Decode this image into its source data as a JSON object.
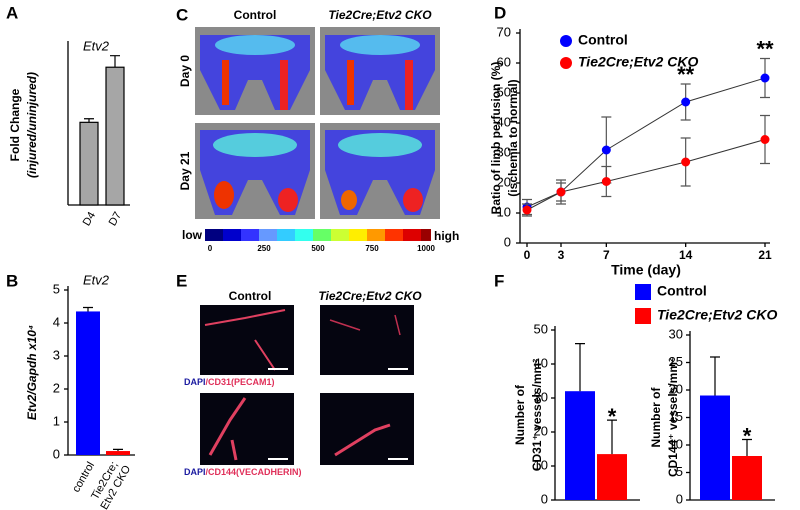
{
  "panel_letters": [
    "A",
    "B",
    "C",
    "D",
    "E",
    "F"
  ],
  "imaging": {
    "columns": [
      "Control",
      "Tie2Cre;Etv2 CKO"
    ],
    "rows": [
      "Day 0",
      "Day 21"
    ],
    "colorbar": {
      "low": "low",
      "high": "high",
      "ticks": [
        "0",
        "250",
        "500",
        "750",
        "1000"
      ]
    }
  },
  "microscopy": {
    "columns": [
      "Control",
      "Tie2Cre;Etv2 CKO"
    ],
    "captions": [
      [
        "DAPI",
        "/CD31(PECAM1)"
      ],
      [
        "DAPI",
        "/CD144(VECADHERIN)"
      ]
    ]
  },
  "chart_data": [
    {
      "type": "bar",
      "title": "Etv2",
      "ylabel": [
        "Fold Change",
        "(injured/uninjured)"
      ],
      "categories": [
        "D4",
        "D7"
      ],
      "values": [
        9.3,
        15.5
      ],
      "errors": [
        0.4,
        1.3
      ],
      "color": "#a6a6a6",
      "ylim": [
        0,
        18
      ]
    },
    {
      "type": "bar",
      "title": "Etv2",
      "ylabel": [
        "Etv2/Gapdh x10⁴"
      ],
      "categories": [
        "control",
        "Tie2Cre; Etv2 CKO"
      ],
      "values": [
        4.35,
        0.12
      ],
      "errors": [
        0.12,
        0.05
      ],
      "colors": [
        "#0000ff",
        "#ff0000"
      ],
      "ylim": [
        0,
        5
      ],
      "yticks": [
        0,
        1,
        2,
        3,
        4,
        5
      ]
    },
    {
      "type": "line",
      "xlabel": "Time (day)",
      "ylabel": [
        "Ratio of limb perfusion (%)",
        "(ischemia to normal)"
      ],
      "x": [
        0,
        3,
        7,
        14,
        21
      ],
      "xlim": [
        0,
        21
      ],
      "xticks": [
        0,
        3,
        7,
        14,
        21
      ],
      "ylim": [
        0,
        70
      ],
      "yticks": [
        0,
        10,
        20,
        30,
        40,
        50,
        60,
        70
      ],
      "series": [
        {
          "name": "Control",
          "color": "#0000ff",
          "values": [
            12,
            17,
            31,
            47,
            55
          ],
          "errors": [
            2.5,
            3,
            11,
            6,
            6.5
          ]
        },
        {
          "name": "Tie2Cre;Etv2 CKO",
          "color": "#ff0000",
          "values": [
            11,
            17,
            20.5,
            27,
            34.5
          ],
          "errors": [
            2,
            4,
            5,
            8,
            8
          ]
        }
      ],
      "annotations": [
        {
          "text": "**",
          "x": 14
        },
        {
          "text": "**",
          "x": 21
        }
      ]
    },
    {
      "type": "bar",
      "ylabel": [
        "Number of",
        "CD31⁺ vessels/mm²"
      ],
      "categories": [
        null
      ],
      "series": [
        {
          "name": "Control",
          "color": "#0000ff",
          "values": [
            32
          ],
          "errors": [
            14
          ]
        },
        {
          "name": "Tie2Cre;Etv2 CKO",
          "color": "#ff0000",
          "values": [
            13.5
          ],
          "errors": [
            10
          ]
        }
      ],
      "ylim": [
        0,
        50
      ],
      "yticks": [
        0,
        10,
        20,
        30,
        40,
        50
      ],
      "annotations": [
        {
          "text": "*",
          "series": 1
        }
      ]
    },
    {
      "type": "bar",
      "ylabel": [
        "Number of",
        "CD144⁺ vessels/mm²"
      ],
      "categories": [
        null
      ],
      "series": [
        {
          "color": "#0000ff",
          "values": [
            19
          ],
          "errors": [
            7
          ]
        },
        {
          "color": "#ff0000",
          "values": [
            8
          ],
          "errors": [
            3
          ]
        }
      ],
      "ylim": [
        0,
        30
      ],
      "yticks": [
        0,
        5,
        10,
        15,
        20,
        25,
        30
      ],
      "annotations": [
        {
          "text": "*",
          "series": 1
        }
      ]
    }
  ]
}
